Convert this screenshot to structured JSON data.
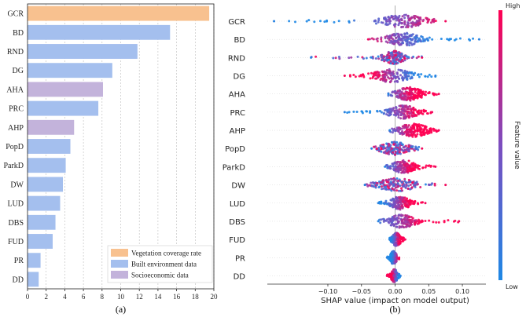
{
  "chart_data": [
    {
      "type": "bar",
      "orientation": "horizontal",
      "panel_label": "(a)",
      "categories": [
        "GCR",
        "BD",
        "RND",
        "DG",
        "AHA",
        "PRC",
        "AHP",
        "PopD",
        "ParkD",
        "DW",
        "LUD",
        "DBS",
        "FUD",
        "PR",
        "DD"
      ],
      "values": [
        19.5,
        15.3,
        11.8,
        9.1,
        8.1,
        7.6,
        5.0,
        4.6,
        4.1,
        3.8,
        3.5,
        3.0,
        2.7,
        1.4,
        1.2
      ],
      "groups": [
        "vegetation",
        "built",
        "built",
        "built",
        "socio",
        "built",
        "socio",
        "built",
        "built",
        "built",
        "built",
        "built",
        "built",
        "built",
        "built"
      ],
      "xlim": [
        0,
        20
      ],
      "xticks": [
        "0",
        "2",
        "4",
        "6",
        "8",
        "10",
        "12",
        "14",
        "16",
        "18",
        "20"
      ],
      "grid": "vertical dotted",
      "legend": [
        {
          "key": "vegetation",
          "label": "Vegetation coverage rate",
          "color": "#F8C18F"
        },
        {
          "key": "built",
          "label": "Built environment data",
          "color": "#A4BFEE"
        },
        {
          "key": "socio",
          "label": "Socioeconomic data",
          "color": "#C3B3DB"
        }
      ],
      "legend_position": "bottom-right"
    },
    {
      "type": "scatter",
      "subtype": "shap-beeswarm",
      "panel_label": "(b)",
      "features": [
        "GCR",
        "BD",
        "RND",
        "DG",
        "AHA",
        "PRC",
        "AHP",
        "PopD",
        "ParkD",
        "DW",
        "LUD",
        "DBS",
        "FUD",
        "PR",
        "DD"
      ],
      "xlabel": "SHAP value (impact on model output)",
      "xlim": [
        -0.19,
        0.135
      ],
      "xticks": [
        -0.1,
        -0.05,
        0.0,
        0.05,
        0.1
      ],
      "xtick_labels": [
        "−0.10",
        "−0.05",
        "0.00",
        "0.05",
        "0.10"
      ],
      "ranges": [
        {
          "feature": "GCR",
          "min": -0.18,
          "max": 0.075,
          "core": [
            -0.035,
            0.06
          ],
          "high_side": "positive"
        },
        {
          "feature": "BD",
          "min": -0.04,
          "max": 0.125,
          "core": [
            -0.025,
            0.05
          ],
          "high_side": "negative"
        },
        {
          "feature": "RND",
          "min": -0.125,
          "max": 0.04,
          "core": [
            -0.025,
            0.02
          ],
          "high_side": "mixed"
        },
        {
          "feature": "DG",
          "min": -0.075,
          "max": 0.06,
          "core": [
            -0.045,
            0.04
          ],
          "high_side": "negative"
        },
        {
          "feature": "AHA",
          "min": -0.01,
          "max": 0.065,
          "core": [
            -0.008,
            0.05
          ],
          "high_side": "positive"
        },
        {
          "feature": "PRC",
          "min": -0.075,
          "max": 0.055,
          "core": [
            -0.02,
            0.045
          ],
          "high_side": "positive"
        },
        {
          "feature": "AHP",
          "min": -0.008,
          "max": 0.065,
          "core": [
            -0.006,
            0.06
          ],
          "high_side": "positive"
        },
        {
          "feature": "PopD",
          "min": -0.035,
          "max": 0.04,
          "core": [
            -0.03,
            0.03
          ],
          "high_side": "mixed"
        },
        {
          "feature": "ParkD",
          "min": -0.015,
          "max": 0.06,
          "core": [
            -0.012,
            0.04
          ],
          "high_side": "positive"
        },
        {
          "feature": "DW",
          "min": -0.045,
          "max": 0.075,
          "core": [
            -0.04,
            0.045
          ],
          "high_side": "mixed"
        },
        {
          "feature": "LUD",
          "min": -0.025,
          "max": 0.045,
          "core": [
            -0.015,
            0.03
          ],
          "high_side": "positive"
        },
        {
          "feature": "DBS",
          "min": -0.025,
          "max": 0.095,
          "core": [
            -0.02,
            0.04
          ],
          "high_side": "positive"
        },
        {
          "feature": "FUD",
          "min": -0.008,
          "max": 0.015,
          "core": [
            -0.008,
            0.012
          ],
          "high_side": "positive"
        },
        {
          "feature": "PR",
          "min": -0.012,
          "max": 0.006,
          "core": [
            -0.01,
            0.005
          ],
          "high_side": "positive"
        },
        {
          "feature": "DD",
          "min": -0.012,
          "max": 0.008,
          "core": [
            -0.008,
            0.006
          ],
          "high_side": "negative"
        }
      ],
      "colorbar": {
        "title": "Feature value",
        "high_label": "High",
        "low_label": "Low",
        "low_color": "#1E88E5",
        "mid_color": "#7C4DBF",
        "high_color": "#FF0052"
      }
    }
  ]
}
